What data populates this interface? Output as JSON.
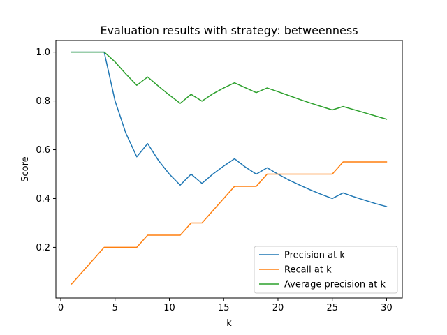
{
  "chart_data": {
    "type": "line",
    "title": "Evaluation results with strategy: betweenness",
    "xlabel": "k",
    "ylabel": "Score",
    "xlim": [
      -0.45,
      31.45
    ],
    "ylim": [
      -0.0075,
      1.0475
    ],
    "xticks": [
      0,
      5,
      10,
      15,
      20,
      25,
      30
    ],
    "yticks": [
      0.2,
      0.4,
      0.6,
      0.8,
      1.0
    ],
    "grid": false,
    "legend_placement": "lower-right",
    "x": [
      1,
      2,
      3,
      4,
      5,
      6,
      7,
      8,
      9,
      10,
      11,
      12,
      13,
      14,
      15,
      16,
      17,
      18,
      19,
      20,
      21,
      22,
      23,
      24,
      25,
      26,
      27,
      28,
      29,
      30
    ],
    "series": [
      {
        "name": "Precision at k",
        "color": "#1f77b4",
        "values": [
          1.0,
          1.0,
          1.0,
          1.0,
          0.8,
          0.667,
          0.571,
          0.625,
          0.556,
          0.5,
          0.455,
          0.5,
          0.462,
          0.5,
          0.533,
          0.563,
          0.529,
          0.5,
          0.526,
          0.5,
          0.476,
          0.455,
          0.435,
          0.417,
          0.4,
          0.423,
          0.407,
          0.393,
          0.379,
          0.367
        ]
      },
      {
        "name": "Recall at k",
        "color": "#ff7f0e",
        "values": [
          0.05,
          0.1,
          0.15,
          0.2,
          0.2,
          0.2,
          0.2,
          0.25,
          0.25,
          0.25,
          0.25,
          0.3,
          0.3,
          0.35,
          0.4,
          0.45,
          0.45,
          0.45,
          0.5,
          0.5,
          0.5,
          0.5,
          0.5,
          0.5,
          0.5,
          0.55,
          0.55,
          0.55,
          0.55,
          0.55
        ]
      },
      {
        "name": "Average precision at k",
        "color": "#2ca02c",
        "values": [
          1.0,
          1.0,
          1.0,
          1.0,
          0.96,
          0.91,
          0.864,
          0.898,
          0.86,
          0.824,
          0.79,
          0.827,
          0.799,
          0.829,
          0.853,
          0.874,
          0.854,
          0.834,
          0.853,
          0.838,
          0.822,
          0.806,
          0.791,
          0.777,
          0.763,
          0.777,
          0.764,
          0.751,
          0.738,
          0.725
        ]
      }
    ]
  }
}
